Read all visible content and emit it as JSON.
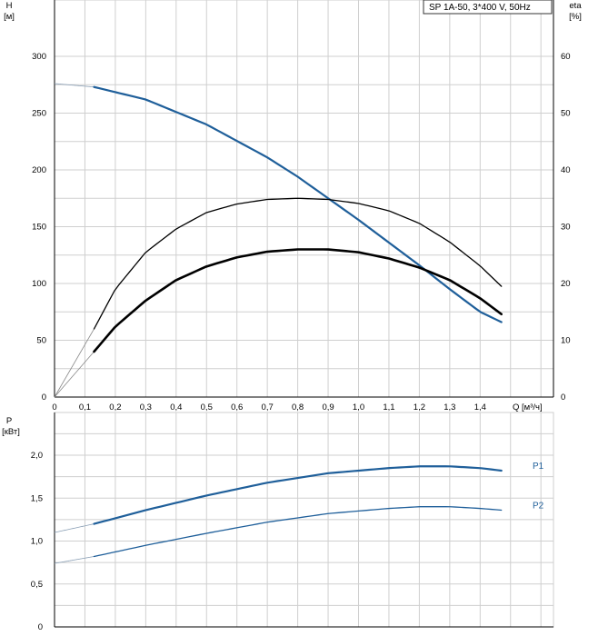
{
  "chart_data": [
    {
      "type": "line",
      "title": "SP 1A-50, 3*400 V, 50Hz",
      "left_axis": {
        "label": "H",
        "unit": "[м]",
        "ylim": [
          0,
          300
        ],
        "ticks": [
          0,
          50,
          100,
          150,
          200,
          250,
          300
        ]
      },
      "right_axis": {
        "label": "eta",
        "unit": "[%]",
        "ylim": [
          0,
          60
        ],
        "ticks": [
          0,
          10,
          20,
          30,
          40,
          50,
          60
        ]
      },
      "x_axis": {
        "label": "Q [м³/ч]",
        "xlim": [
          0,
          1.6
        ],
        "ticks": [
          "0",
          "0,1",
          "0,2",
          "0,3",
          "0,4",
          "0,5",
          "0,6",
          "0,7",
          "0,8",
          "0,9",
          "1,0",
          "1,1",
          "1,2",
          "1,3",
          "1,4"
        ]
      },
      "grid": true,
      "series": [
        {
          "axis": "left",
          "color": "#1f5f9a",
          "thin_start": 0.13,
          "x_end": 1.47,
          "x": [
            0,
            0.13,
            0.3,
            0.5,
            0.7,
            0.8,
            0.9,
            1.0,
            1.1,
            1.2,
            1.3,
            1.4,
            1.47
          ],
          "y": [
            276,
            273,
            262,
            240,
            211,
            194,
            175,
            156,
            136,
            116,
            95,
            75,
            66
          ]
        },
        {
          "axis": "right",
          "color": "#000000",
          "width": "thin",
          "thin_start": 0.13,
          "x_end": 1.47,
          "x": [
            0,
            0.13,
            0.2,
            0.3,
            0.4,
            0.5,
            0.6,
            0.7,
            0.8,
            0.9,
            1.0,
            1.1,
            1.2,
            1.3,
            1.4,
            1.47
          ],
          "y": [
            0,
            12,
            19,
            25.5,
            29.6,
            32.5,
            34,
            34.8,
            35,
            34.8,
            34.1,
            32.8,
            30.6,
            27.3,
            23.1,
            19.5
          ]
        },
        {
          "axis": "right",
          "color": "#000000",
          "width": "thick",
          "thin_start": 0.13,
          "x_end": 1.47,
          "x": [
            0,
            0.13,
            0.2,
            0.3,
            0.4,
            0.5,
            0.6,
            0.7,
            0.8,
            0.9,
            1.0,
            1.1,
            1.2,
            1.3,
            1.4,
            1.47
          ],
          "y": [
            0,
            8,
            12.4,
            17,
            20.6,
            23,
            24.6,
            25.6,
            26,
            26,
            25.5,
            24.4,
            22.8,
            20.6,
            17.4,
            14.6
          ]
        }
      ]
    },
    {
      "type": "line",
      "left_axis": {
        "label": "P",
        "unit": "[кВт]",
        "ylim": [
          0,
          2.0
        ],
        "ticks": [
          "0",
          "0,5",
          "1,0",
          "1,5",
          "2,0"
        ],
        "tick_values": [
          0,
          0.5,
          1.0,
          1.5,
          2.0
        ]
      },
      "x_axis": {
        "xlim": [
          0,
          1.6
        ]
      },
      "grid": true,
      "series": [
        {
          "name": "P1",
          "color": "#1f5f9a",
          "thin_start": 0.13,
          "x_end": 1.47,
          "x": [
            0,
            0.13,
            0.3,
            0.5,
            0.7,
            0.9,
            1.1,
            1.2,
            1.3,
            1.4,
            1.47
          ],
          "y": [
            1.1,
            1.2,
            1.36,
            1.53,
            1.68,
            1.79,
            1.85,
            1.87,
            1.87,
            1.85,
            1.82
          ]
        },
        {
          "name": "P2",
          "color": "#1f5f9a",
          "thin_start": 0.13,
          "x_end": 1.47,
          "x": [
            0,
            0.13,
            0.3,
            0.5,
            0.7,
            0.9,
            1.1,
            1.2,
            1.3,
            1.4,
            1.47
          ],
          "y": [
            0.74,
            0.82,
            0.95,
            1.09,
            1.22,
            1.32,
            1.38,
            1.4,
            1.4,
            1.38,
            1.36
          ]
        }
      ]
    }
  ]
}
